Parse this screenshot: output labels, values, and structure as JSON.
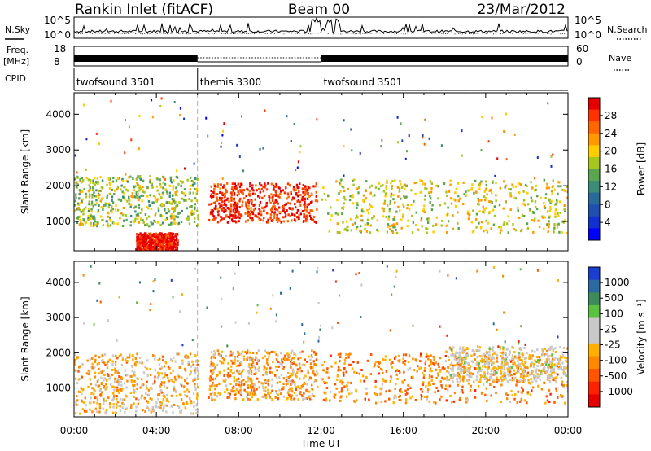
{
  "header": {
    "station": "Rankin Inlet (fitACF)",
    "beam": "Beam 00",
    "date": "23/Mar/2012"
  },
  "top_strip": {
    "nsky_label": "N.Sky",
    "nsearch_label": "N.Search",
    "freq_label_1": "Freq.",
    "freq_label_2": "[MHz]",
    "nave_label": "Nave",
    "cpid_label": "CPID",
    "noise_ticks": [
      "10^5",
      "10^0"
    ],
    "freq_ticks": [
      "18",
      "8"
    ],
    "nave_ticks": [
      "60",
      "0"
    ]
  },
  "cpid_segments": [
    {
      "label": "twofsound 3501",
      "start_hour": 0,
      "end_hour": 6
    },
    {
      "label": "themis 3300",
      "start_hour": 6,
      "end_hour": 12
    },
    {
      "label": "twofsound 3501",
      "start_hour": 12,
      "end_hour": 24
    }
  ],
  "power_panel": {
    "ylabel": "Slant Range [km]",
    "colorbar_label": "Power [dB]",
    "colorbar_ticks": [
      "28",
      "24",
      "20",
      "16",
      "12",
      "8",
      "4"
    ],
    "colorbar_colors": [
      "#e60000",
      "#ff3300",
      "#ff6600",
      "#ff9900",
      "#ffcc00",
      "#a8c41e",
      "#5aa550",
      "#3c8c78",
      "#2a6a9a",
      "#1f4fb0",
      "#1030d0",
      "#0000ff"
    ]
  },
  "velocity_panel": {
    "ylabel": "Slant Range [km]",
    "colorbar_label": "Velocity [m s⁻¹]",
    "colorbar_ticks": [
      "1000",
      "500",
      "100",
      "25",
      "-25",
      "-100",
      "-500",
      "-1000"
    ],
    "colorbar_colors": [
      "#1a3fd0",
      "#2a6aa0",
      "#3f8a5a",
      "#5cc040",
      "#c8c8c8",
      "#c8c8c8",
      "#ffb000",
      "#ff8800",
      "#ff5500",
      "#ff2200",
      "#e60000"
    ]
  },
  "x_axis": {
    "label": "Time UT",
    "ticks": [
      "00:00",
      "04:00",
      "08:00",
      "12:00",
      "16:00",
      "20:00",
      "00:00"
    ]
  },
  "y_axis": {
    "ticks": [
      "4000",
      "3000",
      "2000",
      "1000"
    ]
  },
  "chart_data": [
    {
      "type": "heatmap",
      "title": "Power",
      "xlabel": "",
      "ylabel": "Slant Range [km]",
      "x_unit": "hours UT",
      "xlim": [
        0,
        24
      ],
      "ylim": [
        180,
        4600
      ],
      "colorbar": "Power [dB]",
      "colorbar_range": [
        0,
        30
      ],
      "scatter_echo_regions": [
        {
          "t_start": 0,
          "t_end": 6,
          "range_low_km": 900,
          "range_high_km": 2300,
          "power_db": 16
        },
        {
          "t_start": 3,
          "t_end": 5,
          "range_low_km": 200,
          "range_high_km": 700,
          "power_db": 30
        },
        {
          "t_start": 6.5,
          "t_end": 11.8,
          "range_low_km": 1000,
          "range_high_km": 2100,
          "power_db": 28
        },
        {
          "t_start": 12,
          "t_end": 24,
          "range_low_km": 700,
          "range_high_km": 2200,
          "power_db": 18
        }
      ]
    },
    {
      "type": "heatmap",
      "title": "Velocity",
      "xlabel": "Time UT",
      "ylabel": "Slant Range [km]",
      "x_unit": "hours UT",
      "xlim": [
        0,
        24
      ],
      "ylim": [
        180,
        4600
      ],
      "colorbar": "Velocity [m s⁻¹]",
      "colorbar_range": [
        -1000,
        1000
      ],
      "scatter_echo_regions": [
        {
          "t_start": 0,
          "t_end": 6,
          "range_low_km": 300,
          "range_high_km": 2000,
          "velocity": -200
        },
        {
          "t_start": 6.5,
          "t_end": 11.8,
          "range_low_km": 700,
          "range_high_km": 2100,
          "velocity": -300
        },
        {
          "t_start": 12,
          "t_end": 24,
          "range_low_km": 600,
          "range_high_km": 2000,
          "velocity": -400
        },
        {
          "t_start": 18,
          "t_end": 24,
          "range_low_km": 1200,
          "range_high_km": 2200,
          "velocity": 0
        }
      ]
    }
  ]
}
